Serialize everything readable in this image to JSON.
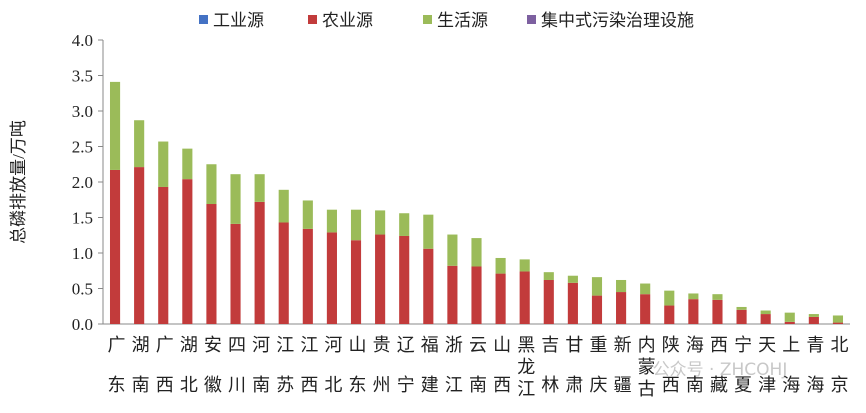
{
  "chart_data": {
    "type": "bar",
    "stacked": true,
    "y_label": "总磷排放量/万吨",
    "watermark": "公众号 · ZHCOHJ",
    "categories": [
      "广东",
      "湖南",
      "广西",
      "湖北",
      "安徽",
      "四川",
      "河南",
      "江苏",
      "江西",
      "河北",
      "山东",
      "贵州",
      "辽宁",
      "福建",
      "浙江",
      "云南",
      "山西",
      "黑龙江",
      "吉林",
      "甘肃",
      "重庆",
      "新疆",
      "内蒙古",
      "陕西",
      "海南",
      "西藏",
      "宁夏",
      "天津",
      "上海",
      "青海",
      "北京"
    ],
    "series": [
      {
        "name": "工业源",
        "color": "#4472c4",
        "values": [
          0,
          0,
          0,
          0,
          0,
          0,
          0,
          0,
          0,
          0,
          0,
          0,
          0,
          0,
          0,
          0,
          0,
          0,
          0,
          0,
          0,
          0,
          0,
          0,
          0,
          0,
          0,
          0,
          0,
          0,
          0
        ]
      },
      {
        "name": "农业源",
        "color": "#c23b3b",
        "values": [
          2.17,
          2.21,
          1.93,
          2.04,
          1.69,
          1.41,
          1.72,
          1.43,
          1.34,
          1.29,
          1.18,
          1.26,
          1.24,
          1.06,
          0.82,
          0.81,
          0.71,
          0.74,
          0.62,
          0.58,
          0.4,
          0.45,
          0.42,
          0.26,
          0.35,
          0.34,
          0.2,
          0.14,
          0.03,
          0.1,
          0.02
        ]
      },
      {
        "name": "生活源",
        "color": "#9bbb59",
        "values": [
          1.24,
          0.66,
          0.64,
          0.43,
          0.56,
          0.7,
          0.39,
          0.46,
          0.4,
          0.32,
          0.43,
          0.34,
          0.32,
          0.48,
          0.44,
          0.4,
          0.22,
          0.17,
          0.11,
          0.1,
          0.26,
          0.17,
          0.15,
          0.21,
          0.08,
          0.08,
          0.04,
          0.05,
          0.13,
          0.04,
          0.1
        ]
      },
      {
        "name": "集中式污染治理设施",
        "color": "#7d60a0",
        "values": [
          0,
          0,
          0,
          0,
          0,
          0,
          0,
          0,
          0,
          0,
          0,
          0,
          0,
          0,
          0,
          0,
          0,
          0,
          0,
          0,
          0,
          0,
          0,
          0,
          0,
          0,
          0,
          0,
          0,
          0,
          0
        ]
      }
    ],
    "ylim": [
      0,
      4
    ],
    "yticks": [
      {
        "value": 0,
        "label": "0.0"
      },
      {
        "value": 0.5,
        "label": "0.5"
      },
      {
        "value": 1,
        "label": "1.0"
      },
      {
        "value": 1.5,
        "label": "1.5"
      },
      {
        "value": 2,
        "label": "2.0"
      },
      {
        "value": 2.5,
        "label": "2.5"
      },
      {
        "value": 3,
        "label": "3.0"
      },
      {
        "value": 3.5,
        "label": "3.5"
      },
      {
        "value": 4,
        "label": "4.0"
      }
    ]
  }
}
